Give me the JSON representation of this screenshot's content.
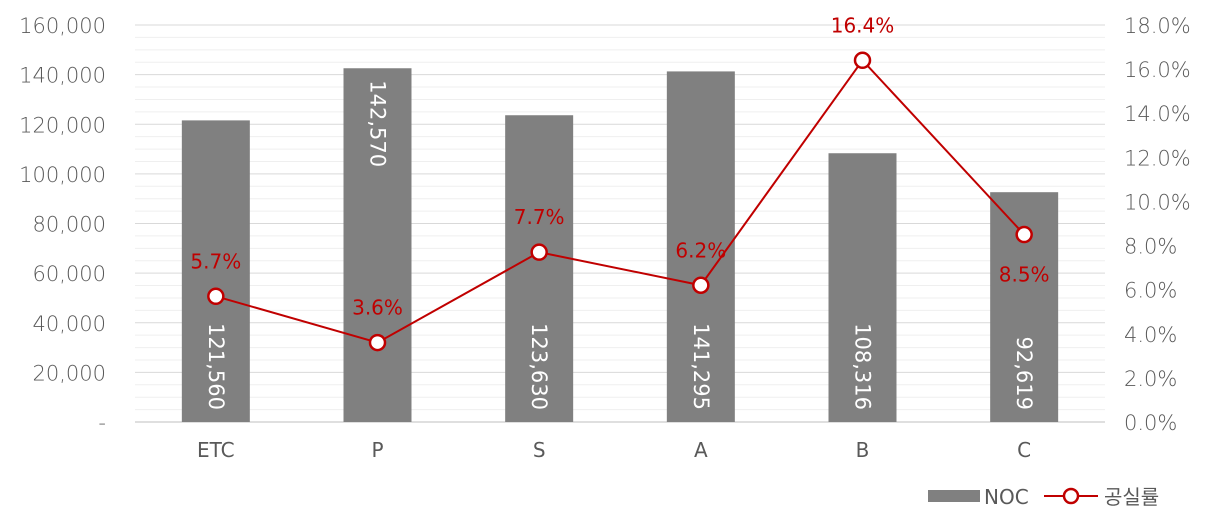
{
  "chart_data": {
    "type": "bar",
    "categories": [
      "ETC",
      "P",
      "S",
      "A",
      "B",
      "C"
    ],
    "series": [
      {
        "name": "NOC",
        "type": "bar",
        "axis": "left",
        "values": [
          121560,
          142570,
          123630,
          141295,
          108316,
          92619
        ],
        "labels": [
          "121,560",
          "142,570",
          "123,630",
          "141,295",
          "108,316",
          "92,619"
        ],
        "color": "#808080"
      },
      {
        "name": "공실률",
        "type": "line",
        "axis": "right",
        "values": [
          5.7,
          3.6,
          7.7,
          6.2,
          16.4,
          8.5
        ],
        "labels": [
          "5.7%",
          "3.6%",
          "7.7%",
          "6.2%",
          "16.4%",
          "8.5%"
        ],
        "color": "#c00000"
      }
    ],
    "y_left": {
      "ylim": [
        0,
        160000
      ],
      "ticks": [
        "-",
        "20,000",
        "40,000",
        "60,000",
        "80,000",
        "100,000",
        "120,000",
        "140,000",
        "160,000"
      ]
    },
    "y_right": {
      "ylim": [
        0,
        18
      ],
      "ticks": [
        "0.0%",
        "2.0%",
        "4.0%",
        "6.0%",
        "8.0%",
        "10.0%",
        "12.0%",
        "14.0%",
        "16.0%",
        "18.0%"
      ]
    },
    "grid": true,
    "legend": {
      "position": "bottom-right",
      "entries": [
        "NOC",
        "공실률"
      ]
    }
  }
}
